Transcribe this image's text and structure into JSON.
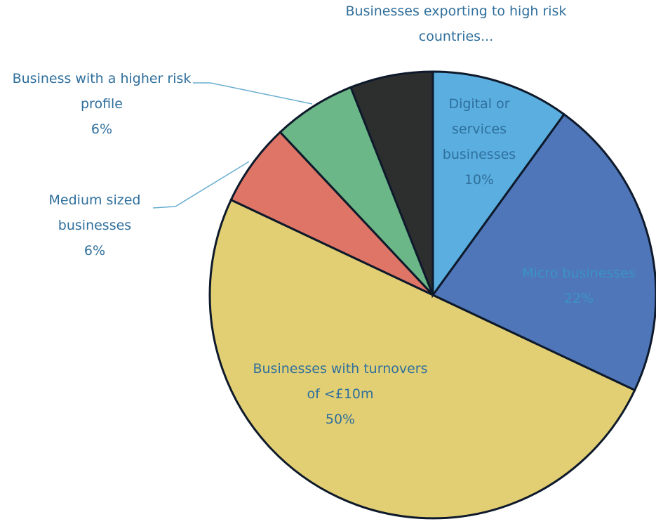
{
  "chart_data": {
    "type": "pie",
    "categories": [
      "Digital or services businesses",
      "Micro businesses",
      "Businesses with turnovers of <£10m",
      "Medium sized businesses",
      "Business with a higher risk profile",
      "Businesses exporting to high risk countries..."
    ],
    "values": [
      10,
      22,
      50,
      6,
      6,
      6
    ],
    "value_labels": [
      "10%",
      "22%",
      "50%",
      "6%",
      "6%",
      null
    ],
    "colors": [
      "#5aafe0",
      "#4f76b8",
      "#e3cf73",
      "#df7566",
      "#6cb787",
      "#2d2f2f"
    ],
    "start_angle": 0,
    "direction": "clockwise"
  }
}
